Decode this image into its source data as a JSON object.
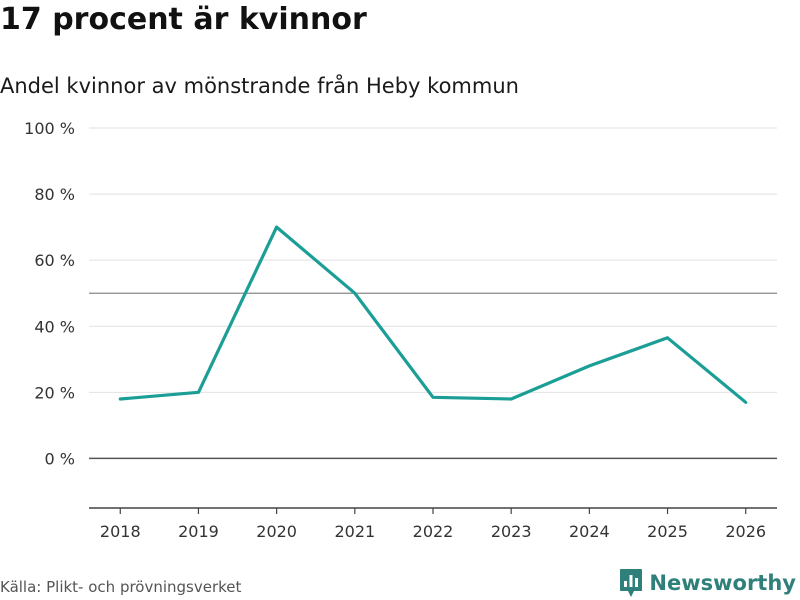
{
  "header": {
    "title": "17 procent är kvinnor",
    "subtitle": "Andel kvinnor av mönstrande från Heby kommun"
  },
  "footer": {
    "source": "Källa: Plikt- och prövningsverket",
    "brand": "Newsworthy"
  },
  "chart_data": {
    "type": "line",
    "title": "17 procent är kvinnor",
    "subtitle": "Andel kvinnor av mönstrande från Heby kommun",
    "xlabel": "",
    "ylabel": "",
    "x": [
      2018,
      2019,
      2020,
      2021,
      2022,
      2023,
      2024,
      2025,
      2026
    ],
    "series": [
      {
        "values": [
          18,
          20,
          70,
          50,
          18.5,
          18,
          28,
          36.5,
          17
        ]
      }
    ],
    "y_ticks": [
      0,
      20,
      40,
      60,
      80,
      100
    ],
    "y_tick_labels": [
      "0 %",
      "20 %",
      "40 %",
      "60 %",
      "80 %",
      "100 %"
    ],
    "x_tick_labels": [
      "2018",
      "2019",
      "2020",
      "2021",
      "2022",
      "2023",
      "2024",
      "2025",
      "2026"
    ],
    "ylim": [
      -15,
      100
    ],
    "xlim": [
      2017.6,
      2026.4
    ],
    "reference_line": 50,
    "grid": true,
    "colors": {
      "line": "#1a9e96",
      "grid": "#e2e2e2",
      "reference": "#888888",
      "zero": "#555555",
      "axis": "#444444"
    }
  }
}
